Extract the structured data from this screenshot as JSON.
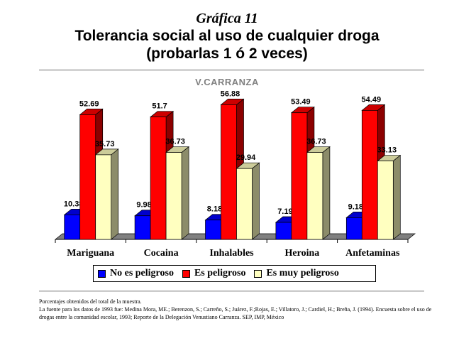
{
  "header": {
    "graph_number": "Gráfica 11",
    "title_line1": "Tolerancia social al uso de cualquier droga",
    "title_line2": "(probarlas 1 ó 2 veces)"
  },
  "subtitle": "V.CARRANZA",
  "footer": {
    "line1": "Porcentajes obtenidos del total de la muestra.",
    "line2": "La fuente para los datos de 1993 fue: Medina Mora, ME.; Berenzon, S.; Carreño, S.; Juárez, F.;Rojas, E.; Villatoro, J.; Cardiel, H.; Breña, J. (1994). Encuesta sobre el uso de drogas entre la comunidad escolar, 1993; Reporte de la Delegación Venustiano Carranza. SEP, IMP, México"
  },
  "chart_data": {
    "type": "bar",
    "title": "Tolerancia social al uso de cualquier droga (probarlas 1 ó 2 veces)",
    "subtitle": "V.CARRANZA",
    "categories": [
      "Mariguana",
      "Cocaina",
      "Inhalables",
      "Heroina",
      "Anfetaminas"
    ],
    "series": [
      {
        "name": "No es peligroso",
        "color": "#0000ff",
        "values": [
          10.38,
          9.98,
          8.18,
          7.19,
          9.18
        ]
      },
      {
        "name": "Es peligroso",
        "color": "#ff0000",
        "values": [
          52.69,
          51.7,
          56.88,
          53.49,
          54.49
        ]
      },
      {
        "name": "Es muy peligroso",
        "color": "#ffffc0",
        "values": [
          35.73,
          36.73,
          29.94,
          36.73,
          33.13
        ]
      }
    ],
    "value_labels": [
      [
        "10.38",
        "9.98",
        "8.18",
        "7.19",
        "9.18"
      ],
      [
        "52.69",
        "51.7",
        "56.88",
        "53.49",
        "54.49"
      ],
      [
        "35.73",
        "36.73",
        "29.94",
        "36.73",
        "33.13"
      ]
    ],
    "ylim": [
      0,
      60
    ],
    "three_d": true,
    "grid": false,
    "legend": "bottom"
  }
}
